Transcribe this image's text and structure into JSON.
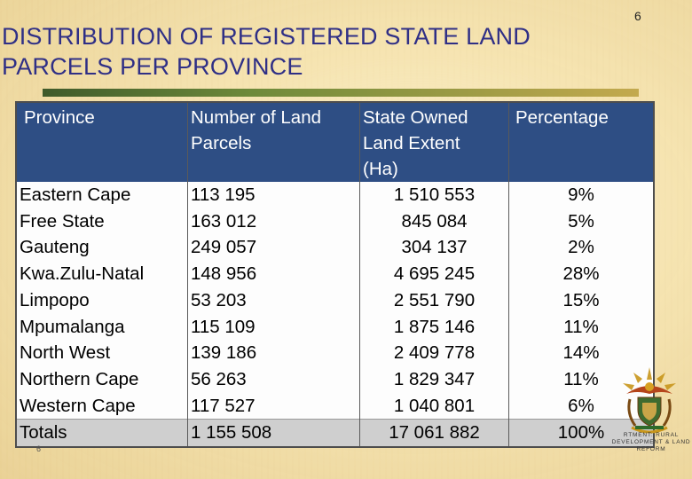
{
  "slide": {
    "title_line1": "DISTRIBUTION OF REGISTERED STATE LAND",
    "title_line2": "PARCELS PER PROVINCE",
    "page_number": "6",
    "footer_number": "6"
  },
  "table": {
    "headers": {
      "province": "Province",
      "parcels_line1": "Number of Land",
      "parcels_line2": "Parcels",
      "extent_line1": "State Owned",
      "extent_line2": "Land Extent",
      "extent_line3": "(Ha)",
      "percentage": "Percentage"
    },
    "rows": [
      {
        "province": "Eastern Cape",
        "parcels": "113 195",
        "extent": "1 510 553",
        "percentage": "9%"
      },
      {
        "province": "Free State",
        "parcels": "163 012",
        "extent": "845 084",
        "percentage": "5%"
      },
      {
        "province": "Gauteng",
        "parcels": "249 057",
        "extent": "304 137",
        "percentage": "2%"
      },
      {
        "province": "Kwa.Zulu-Natal",
        "parcels": "148 956",
        "extent": "4 695 245",
        "percentage": "28%"
      },
      {
        "province": "Limpopo",
        "parcels": "53 203",
        "extent": "2 551 790",
        "percentage": "15%"
      },
      {
        "province": "Mpumalanga",
        "parcels": "115 109",
        "extent": "1 875 146",
        "percentage": "11%"
      },
      {
        "province": "North West",
        "parcels": "139 186",
        "extent": "2 409 778",
        "percentage": "14%"
      },
      {
        "province": "Northern Cape",
        "parcels": "56 263",
        "extent": "1 829 347",
        "percentage": "11%"
      },
      {
        "province": "Western Cape",
        "parcels": "117 527",
        "extent": "1 040 801",
        "percentage": "6%"
      }
    ],
    "totals": {
      "province": "Totals",
      "parcels": "1 155 508",
      "extent": "17 061 882",
      "percentage": "100%"
    }
  },
  "logo": {
    "line1": "RTMENT: RURAL",
    "line2": "DEVELOPMENT & LAND",
    "line3": "REFORM"
  },
  "colors": {
    "title": "#2f2f86",
    "header_bg": "#2e4e84",
    "totals_bg": "#cfcfcf"
  }
}
